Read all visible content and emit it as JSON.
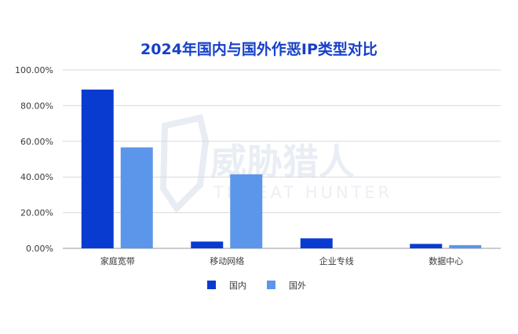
{
  "watermark": {
    "name": "威胁猎人",
    "tagline": "THREAT HUNTER"
  },
  "chart_data": {
    "type": "bar",
    "title": "2024年国内与国外作恶IP类型对比",
    "categories": [
      "家庭宽带",
      "移动网络",
      "企业专线",
      "数据中心"
    ],
    "series": [
      {
        "name": "国内",
        "color": "#0a3bd1",
        "values": [
          0.89,
          0.038,
          0.056,
          0.025
        ]
      },
      {
        "name": "国外",
        "color": "#5b96ea",
        "values": [
          0.566,
          0.415,
          0.0,
          0.018
        ]
      }
    ],
    "y_ticks": [
      "0.00%",
      "20.00%",
      "40.00%",
      "60.00%",
      "80.00%",
      "100.00%"
    ],
    "ylim": [
      0,
      1
    ],
    "grid": true,
    "legend_position": "bottom"
  }
}
